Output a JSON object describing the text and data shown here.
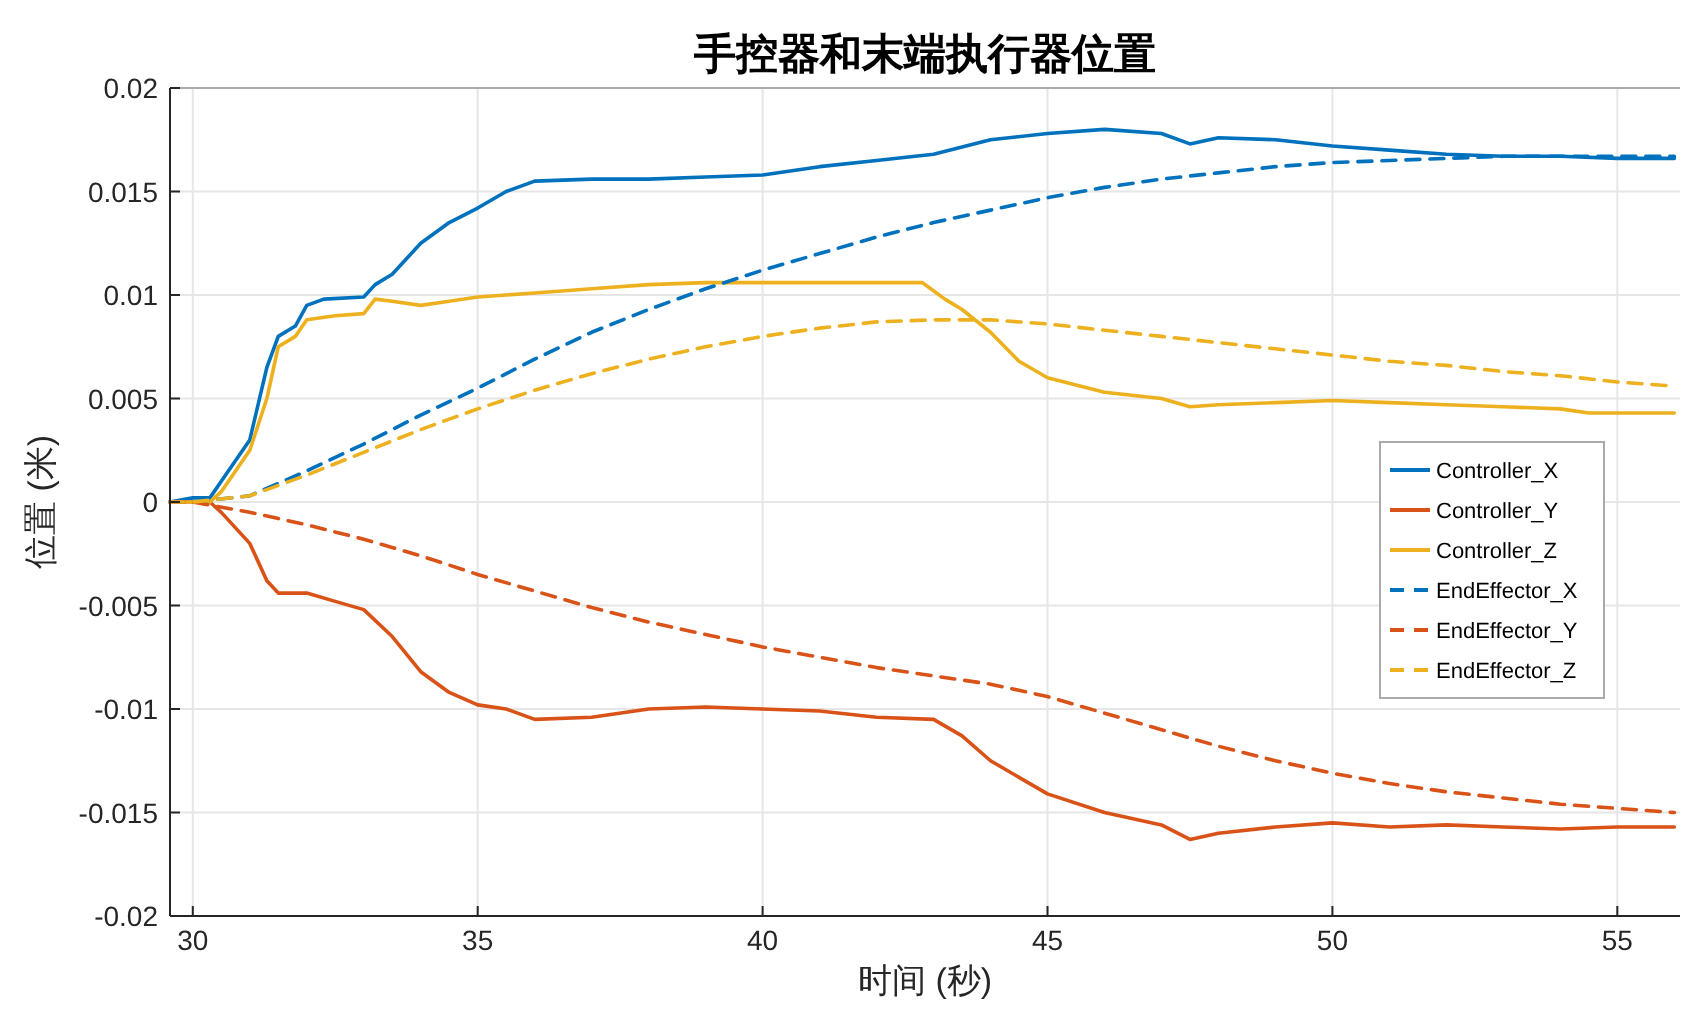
{
  "chart_data": {
    "type": "line",
    "title": "手控器和末端执行器位置",
    "xlabel": "时间 (秒)",
    "ylabel": "位置 (米)",
    "xlim": [
      29.6,
      56.1
    ],
    "xticks": [
      30,
      35,
      40,
      45,
      50,
      55
    ],
    "ylim": [
      -0.02,
      0.02
    ],
    "yticks": [
      -0.02,
      -0.015,
      -0.01,
      -0.005,
      0,
      0.005,
      0.01,
      0.015,
      0.02
    ],
    "grid": true,
    "legend": "right",
    "series": [
      {
        "name": "Controller_X",
        "color": "#0072bd",
        "line_style": "solid",
        "x": [
          29.6,
          30,
          30.3,
          30.5,
          31,
          31.3,
          31.5,
          31.8,
          32,
          32.3,
          33,
          33.2,
          33.5,
          34,
          34.5,
          35,
          35.5,
          36,
          37,
          38,
          39,
          40,
          41,
          42,
          43,
          44,
          45,
          46,
          47,
          47.5,
          48,
          49,
          50,
          51,
          52,
          53,
          54,
          55,
          56
        ],
        "values": [
          0,
          0.0002,
          0.0002,
          0.001,
          0.003,
          0.0065,
          0.008,
          0.0085,
          0.0095,
          0.0098,
          0.0099,
          0.0105,
          0.011,
          0.0125,
          0.0135,
          0.0142,
          0.015,
          0.0155,
          0.0156,
          0.0156,
          0.0157,
          0.0158,
          0.0162,
          0.0165,
          0.0168,
          0.0175,
          0.0178,
          0.018,
          0.0178,
          0.0173,
          0.0176,
          0.0175,
          0.0172,
          0.017,
          0.0168,
          0.0167,
          0.0167,
          0.0166,
          0.0166
        ]
      },
      {
        "name": "Controller_Y",
        "color": "#d95319",
        "line_style": "solid",
        "x": [
          29.6,
          30.3,
          30.5,
          31,
          31.3,
          31.5,
          32,
          32.5,
          33,
          33.5,
          34,
          34.5,
          35,
          35.5,
          36,
          37,
          38,
          39,
          40,
          41,
          42,
          43,
          43.5,
          44,
          45,
          46,
          47,
          47.5,
          48,
          49,
          50,
          51,
          52,
          53,
          54,
          55,
          56
        ],
        "values": [
          0,
          0,
          -0.0005,
          -0.002,
          -0.0038,
          -0.0044,
          -0.0044,
          -0.0048,
          -0.0052,
          -0.0065,
          -0.0082,
          -0.0092,
          -0.0098,
          -0.01,
          -0.0105,
          -0.0104,
          -0.01,
          -0.0099,
          -0.01,
          -0.0101,
          -0.0104,
          -0.0105,
          -0.0113,
          -0.0125,
          -0.0141,
          -0.015,
          -0.0156,
          -0.0163,
          -0.016,
          -0.0157,
          -0.0155,
          -0.0157,
          -0.0156,
          -0.0157,
          -0.0158,
          -0.0157,
          -0.0157
        ]
      },
      {
        "name": "Controller_Z",
        "color": "#edb120",
        "line_style": "solid",
        "x": [
          29.6,
          30.3,
          30.5,
          31,
          31.3,
          31.5,
          31.8,
          32,
          32.5,
          33,
          33.2,
          33.5,
          34,
          34.5,
          35,
          36,
          37,
          38,
          39,
          40,
          41,
          42,
          42.8,
          43.2,
          43.5,
          44,
          44.5,
          45,
          46,
          47,
          47.5,
          48,
          49,
          50,
          51,
          52,
          53,
          54,
          54.5,
          55,
          56
        ],
        "values": [
          0,
          0,
          0.0005,
          0.0025,
          0.005,
          0.0075,
          0.008,
          0.0088,
          0.009,
          0.0091,
          0.0098,
          0.0097,
          0.0095,
          0.0097,
          0.0099,
          0.0101,
          0.0103,
          0.0105,
          0.0106,
          0.0106,
          0.0106,
          0.0106,
          0.0106,
          0.0098,
          0.0093,
          0.0082,
          0.0068,
          0.006,
          0.0053,
          0.005,
          0.0046,
          0.0047,
          0.0048,
          0.0049,
          0.0048,
          0.0047,
          0.0046,
          0.0045,
          0.0043,
          0.0043,
          0.0043
        ]
      },
      {
        "name": "EndEffector_X",
        "color": "#0072bd",
        "line_style": "dashed",
        "x": [
          29.6,
          30,
          31,
          32,
          33,
          34,
          35,
          36,
          37,
          38,
          39,
          40,
          41,
          42,
          43,
          44,
          45,
          46,
          47,
          48,
          49,
          50,
          51,
          52,
          53,
          54,
          55,
          56
        ],
        "values": [
          0,
          0,
          0.0003,
          0.0015,
          0.0028,
          0.0042,
          0.0055,
          0.0069,
          0.0082,
          0.0093,
          0.0103,
          0.0112,
          0.012,
          0.0128,
          0.0135,
          0.0141,
          0.0147,
          0.0152,
          0.0156,
          0.0159,
          0.0162,
          0.0164,
          0.0165,
          0.0166,
          0.0167,
          0.0167,
          0.0167,
          0.0167
        ]
      },
      {
        "name": "EndEffector_Y",
        "color": "#d95319",
        "line_style": "dashed",
        "x": [
          29.6,
          30,
          31,
          32,
          33,
          34,
          35,
          36,
          37,
          38,
          39,
          40,
          41,
          42,
          43,
          44,
          45,
          46,
          47,
          48,
          49,
          50,
          51,
          52,
          53,
          54,
          55,
          56
        ],
        "values": [
          0,
          0,
          -0.0005,
          -0.0011,
          -0.0018,
          -0.0026,
          -0.0035,
          -0.0043,
          -0.0051,
          -0.0058,
          -0.0064,
          -0.007,
          -0.0075,
          -0.008,
          -0.0084,
          -0.0088,
          -0.0094,
          -0.0102,
          -0.011,
          -0.0118,
          -0.0125,
          -0.0131,
          -0.0136,
          -0.014,
          -0.0143,
          -0.0146,
          -0.0148,
          -0.015
        ]
      },
      {
        "name": "EndEffector_Z",
        "color": "#edb120",
        "line_style": "dashed",
        "x": [
          29.6,
          30,
          31,
          32,
          33,
          34,
          35,
          36,
          37,
          38,
          39,
          40,
          41,
          42,
          43,
          44,
          45,
          46,
          47,
          48,
          49,
          50,
          51,
          52,
          53,
          54,
          55,
          56
        ],
        "values": [
          0,
          0,
          0.0003,
          0.0013,
          0.0024,
          0.0035,
          0.0045,
          0.0054,
          0.0062,
          0.0069,
          0.0075,
          0.008,
          0.0084,
          0.0087,
          0.0088,
          0.0088,
          0.0086,
          0.0083,
          0.008,
          0.0077,
          0.0074,
          0.0071,
          0.0068,
          0.0066,
          0.0063,
          0.0061,
          0.0058,
          0.0056
        ]
      }
    ]
  }
}
